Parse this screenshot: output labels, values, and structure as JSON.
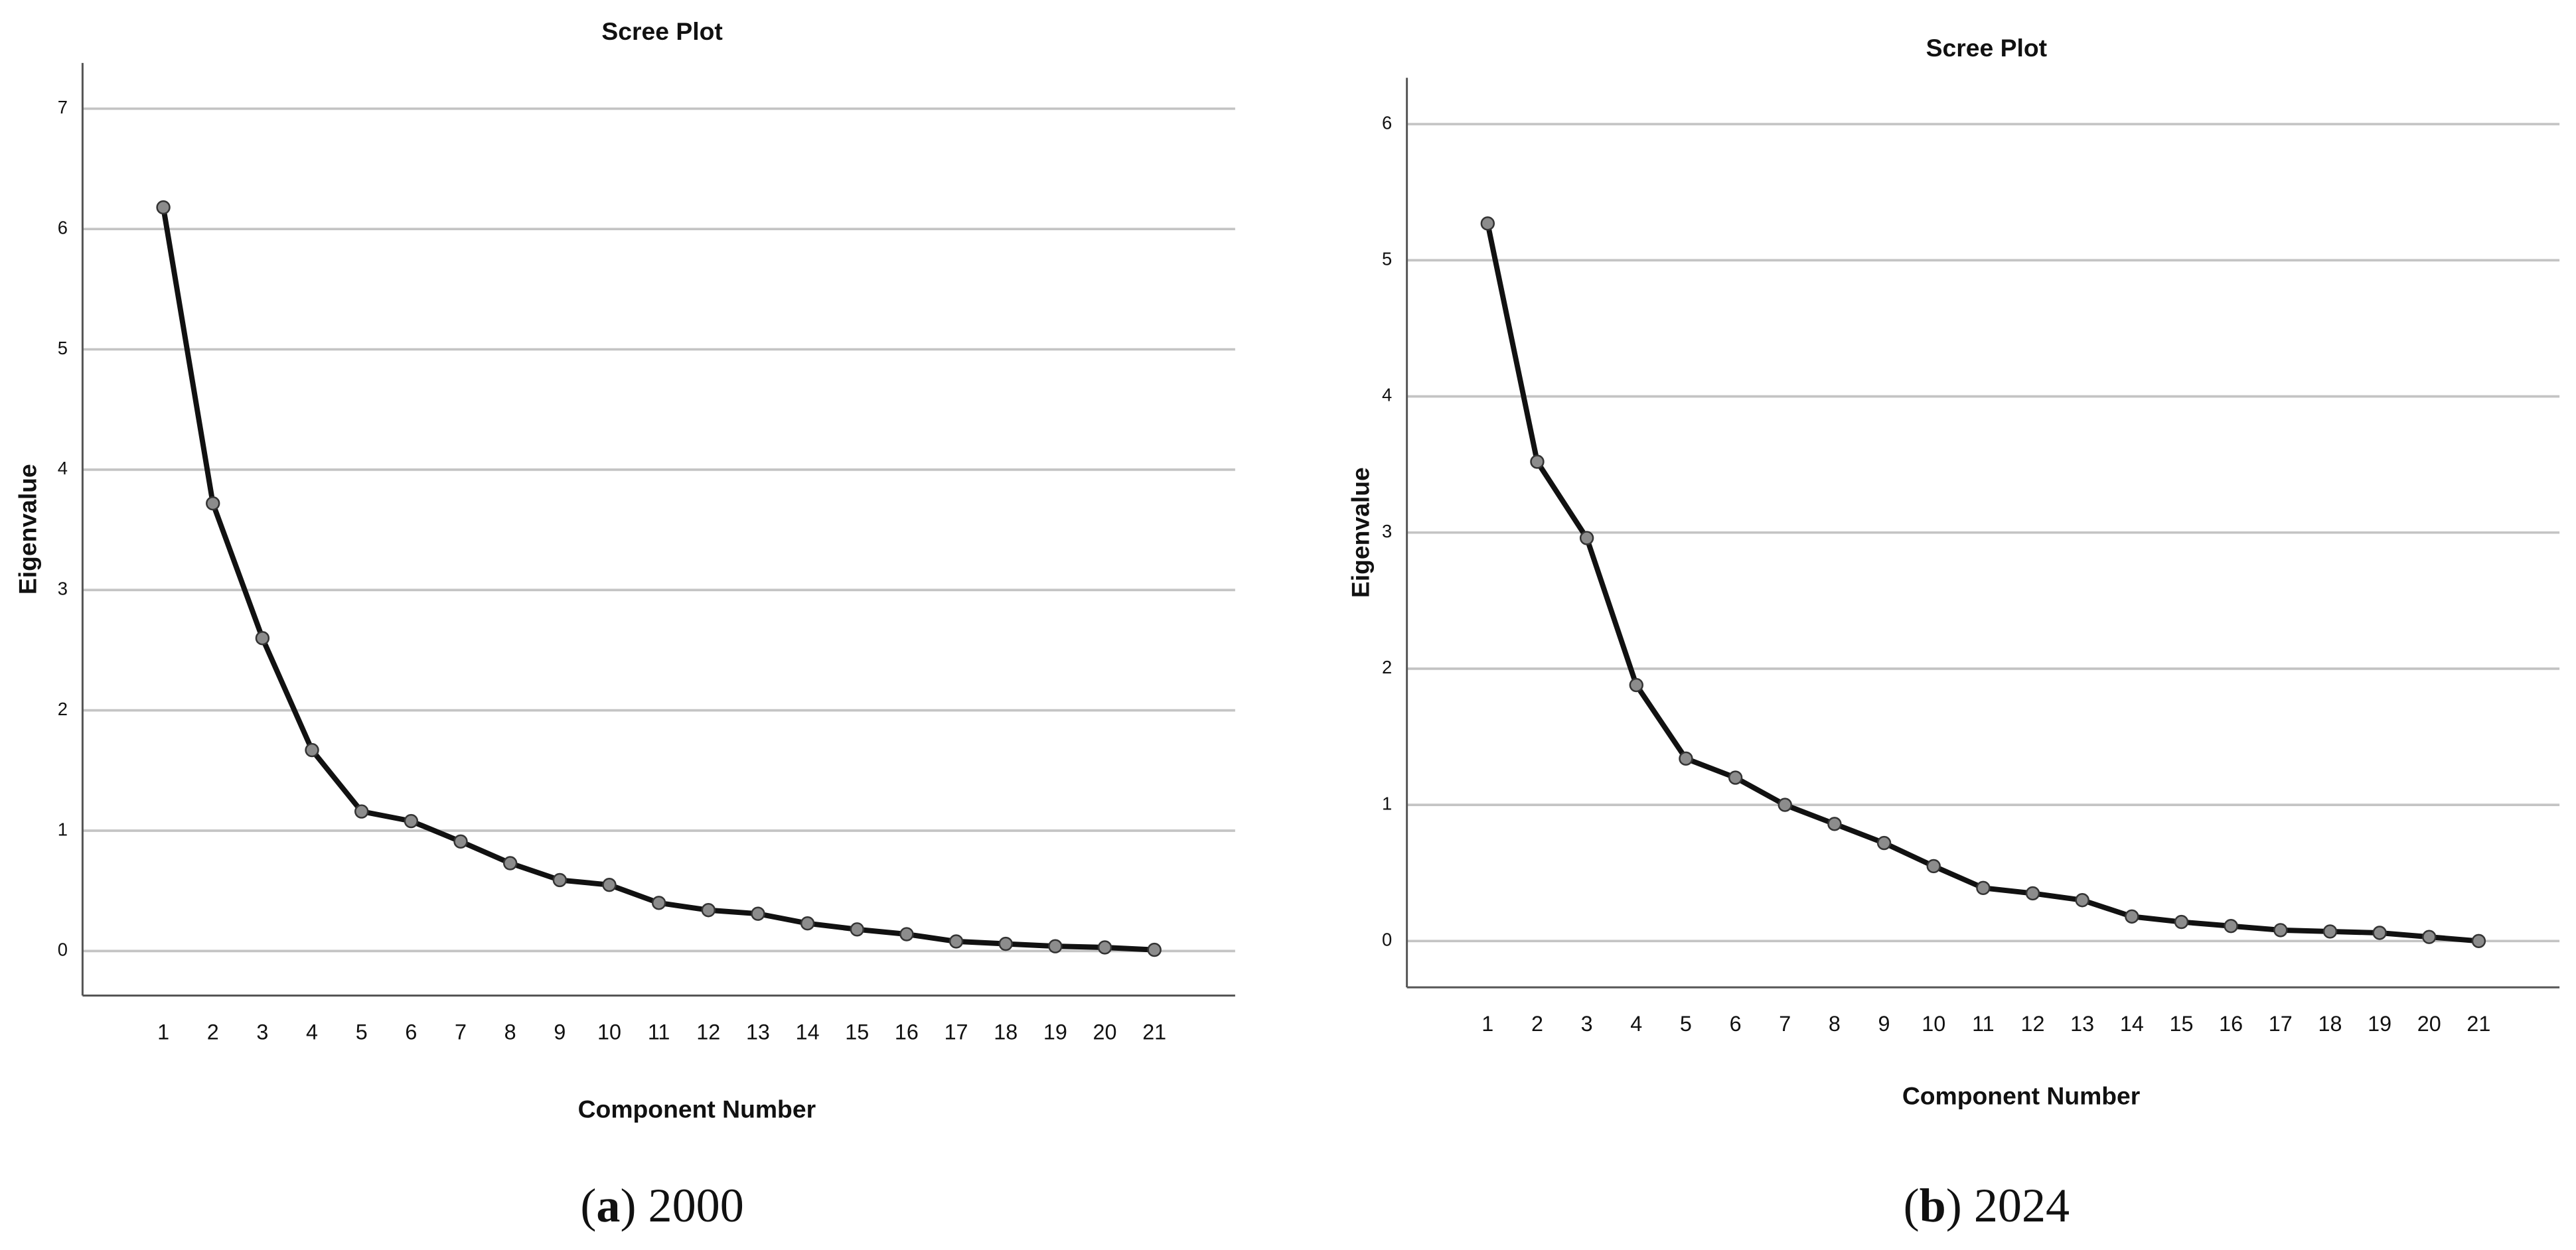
{
  "chart_data": [
    {
      "type": "line",
      "title": "Scree Plot",
      "x_label": "Component Number",
      "y_label": "Eigenvalue",
      "caption": [
        "(",
        "a",
        ") 2000"
      ],
      "x": [
        1,
        2,
        3,
        4,
        5,
        6,
        7,
        8,
        9,
        10,
        11,
        12,
        13,
        14,
        15,
        16,
        17,
        18,
        19,
        20,
        21
      ],
      "values": [
        6.18,
        3.72,
        2.6,
        1.67,
        1.16,
        1.08,
        0.91,
        0.73,
        0.59,
        0.55,
        0.4,
        0.34,
        0.31,
        0.23,
        0.18,
        0.14,
        0.08,
        0.06,
        0.04,
        0.03,
        0.01
      ],
      "color": "#111111",
      "marker_color": "#8c8c8c",
      "xlim": [
        -0.63,
        22.63
      ],
      "xticks": [
        1,
        2,
        3,
        4,
        5,
        6,
        7,
        8,
        9,
        10,
        11,
        12,
        13,
        14,
        15,
        16,
        17,
        18,
        19,
        20,
        21
      ],
      "ylim": [
        -0.37,
        7.38
      ],
      "yticks": [
        0,
        1,
        2,
        3,
        4,
        5,
        6,
        7
      ],
      "grid": true
    },
    {
      "type": "line",
      "title": "Scree Plot",
      "x_label": "Component Number",
      "y_label": "Eigenvalue",
      "caption": [
        "(",
        "b",
        ") 2024"
      ],
      "x": [
        1,
        2,
        3,
        4,
        5,
        6,
        7,
        8,
        9,
        10,
        11,
        12,
        13,
        14,
        15,
        16,
        17,
        18,
        19,
        20,
        21
      ],
      "values": [
        5.27,
        3.52,
        2.96,
        1.88,
        1.34,
        1.2,
        1.0,
        0.86,
        0.72,
        0.55,
        0.39,
        0.35,
        0.3,
        0.18,
        0.14,
        0.11,
        0.08,
        0.07,
        0.06,
        0.03,
        0.0
      ],
      "color": "#111111",
      "marker_color": "#8c8c8c",
      "xlim": [
        -0.63,
        22.63
      ],
      "xticks": [
        1,
        2,
        3,
        4,
        5,
        6,
        7,
        8,
        9,
        10,
        11,
        12,
        13,
        14,
        15,
        16,
        17,
        18,
        19,
        20,
        21
      ],
      "ylim": [
        -0.34,
        6.34
      ],
      "yticks": [
        0,
        1,
        2,
        3,
        4,
        5,
        6
      ],
      "grid": true
    }
  ]
}
